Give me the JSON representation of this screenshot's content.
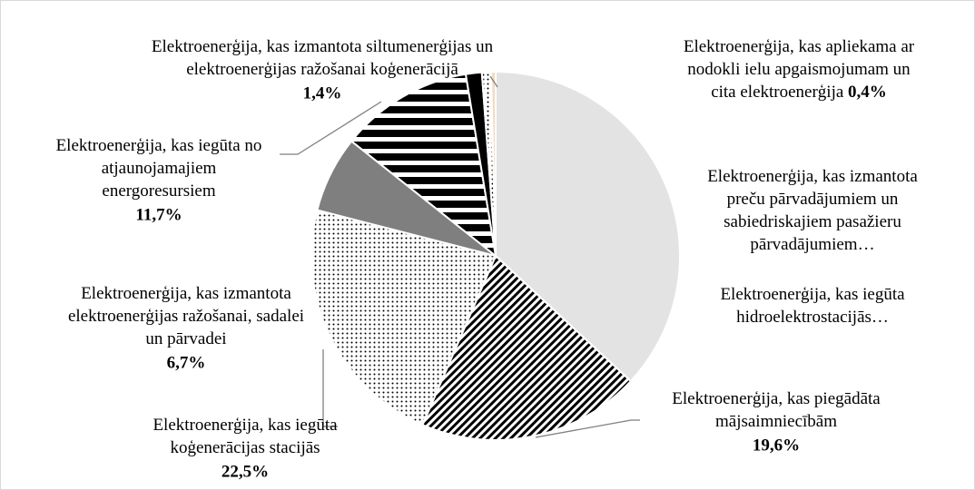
{
  "chart_data": {
    "type": "pie",
    "labels": [
      [
        "Elektroenerģija, kas iegūta",
        "hidroelektrostacijās…"
      ],
      [
        "Elektroenerģija, kas piegādāta",
        "mājsaimniecībām"
      ],
      [
        "Elektroenerģija, kas iegūta",
        "koģenerācijas stacijās"
      ],
      [
        "Elektroenerģija, kas izmantota",
        "elektroenerģijas ražošanai, sadalei",
        "un pārvadei"
      ],
      [
        "Elektroenerģija, kas iegūta no",
        "atjaunojamajiem",
        "energoresursiem"
      ],
      [
        "Elektroenerģija, kas izmantota siltumenerģijas un",
        "elektroenerģijas ražošanai koģenerācijā"
      ],
      [
        "Elektroenerģija, kas izmantota",
        "preču pārvadājumiem un",
        "sabiedriskajiem pasažieru",
        "pārvadājumiem…"
      ],
      [
        "Elektroenerģija, kas apliekama ar",
        "nodokli ielu apgaismojumam un",
        "cita elektroenerģija"
      ]
    ],
    "values": [
      36.9,
      19.6,
      22.5,
      6.7,
      11.7,
      1.4,
      0.8,
      0.4
    ],
    "value_labels": [
      null,
      "19,6%",
      "22,5%",
      "6,7%",
      "11,7%",
      "1,4%",
      null,
      "0,4%"
    ],
    "colors": [
      "#e3e3e3",
      "#000000",
      "#000000",
      "#7f7f7f",
      "#000000",
      "#000000",
      "#000000",
      "#f2dcc0"
    ],
    "patterns": [
      "solid",
      "diagonal",
      "dots",
      "solid",
      "hstripes",
      "solid",
      "dots",
      "solid"
    ]
  }
}
